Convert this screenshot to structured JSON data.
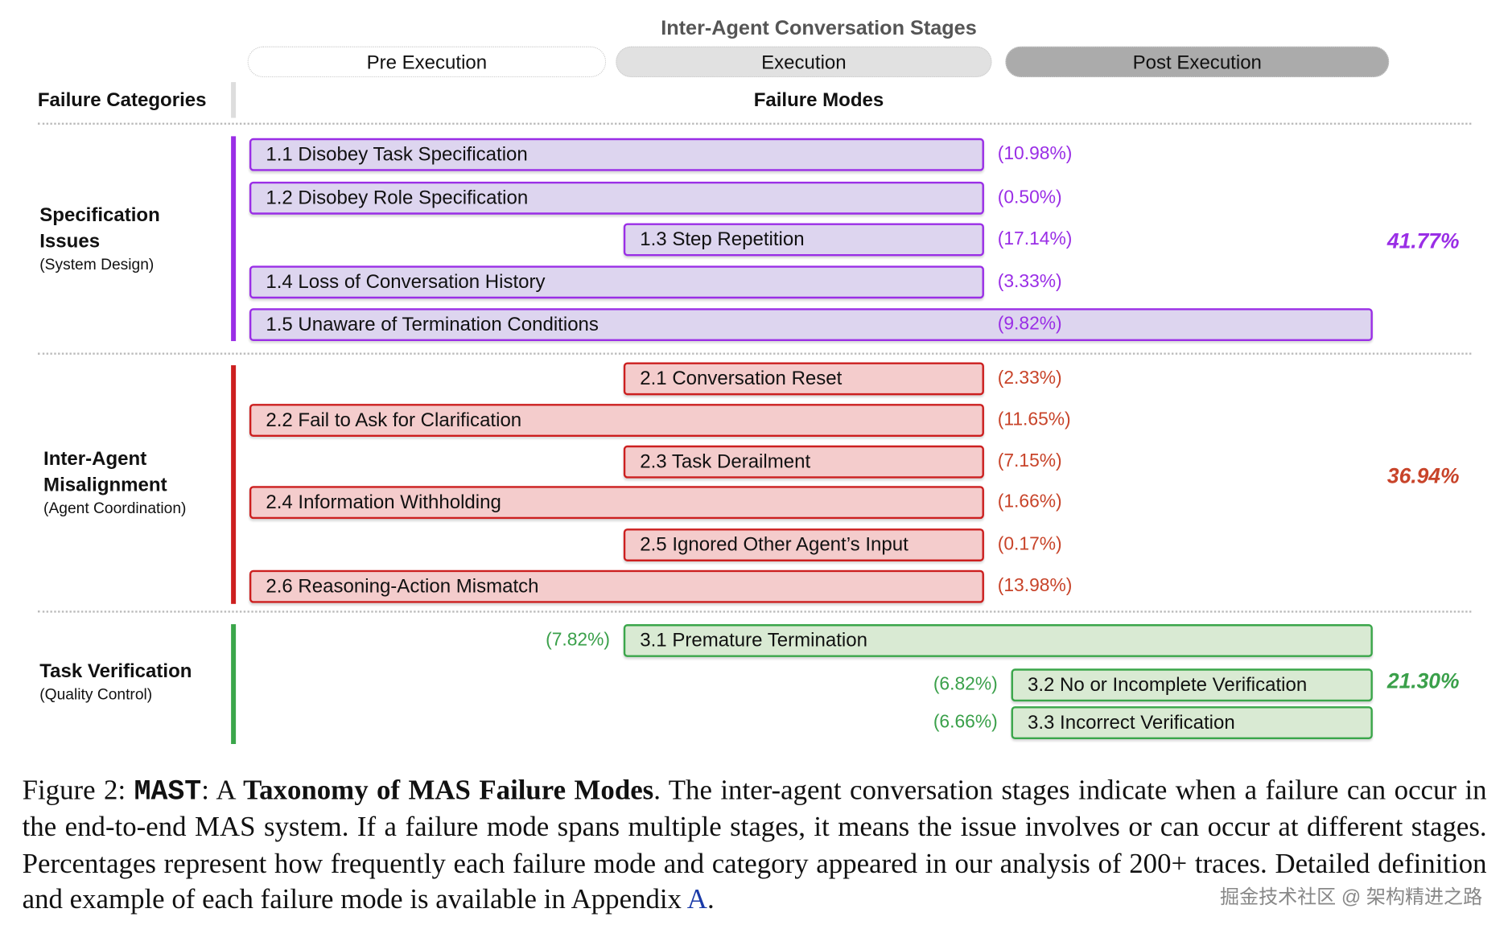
{
  "stages_title": "Inter-Agent Conversation Stages",
  "stages": [
    {
      "key": "pre",
      "label": "Pre Execution",
      "color": "#f3f3f3"
    },
    {
      "key": "exec",
      "label": "Execution",
      "color": "#e1e1e1"
    },
    {
      "key": "post",
      "label": "Post Execution",
      "color": "#ababab"
    }
  ],
  "headers": {
    "categories": "Failure Categories",
    "modes": "Failure Modes"
  },
  "categories": [
    {
      "name_line1": "Specification",
      "name_line2": "Issues",
      "subtitle": "(System Design)",
      "total": "41.77%",
      "color": "#9a2ee6",
      "fill": "#ddd5ef",
      "pct_color": "#9a2ee6",
      "modes": [
        {
          "label": "1.1 Disobey Task Specification",
          "pct": "(10.98%)",
          "stages": [
            "pre",
            "exec"
          ]
        },
        {
          "label": "1.2 Disobey Role Specification",
          "pct": "(0.50%)",
          "stages": [
            "pre",
            "exec"
          ]
        },
        {
          "label": "1.3 Step Repetition",
          "pct": "(17.14%)",
          "stages": [
            "exec"
          ]
        },
        {
          "label": "1.4 Loss of Conversation History",
          "pct": "(3.33%)",
          "stages": [
            "pre",
            "exec"
          ]
        },
        {
          "label": "1.5 Unaware of Termination Conditions",
          "pct": "(9.82%)",
          "stages": [
            "pre",
            "exec",
            "post"
          ]
        }
      ]
    },
    {
      "name_line1": "Inter-Agent",
      "name_line2": "Misalignment",
      "subtitle": "(Agent Coordination)",
      "total": "36.94%",
      "color": "#cc1f1f",
      "fill": "#f4cccc",
      "pct_color": "#c8442a",
      "modes": [
        {
          "label": "2.1 Conversation Reset",
          "pct": "(2.33%)",
          "stages": [
            "exec"
          ]
        },
        {
          "label": "2.2 Fail to Ask for Clarification",
          "pct": "(11.65%)",
          "stages": [
            "pre",
            "exec"
          ]
        },
        {
          "label": "2.3 Task Derailment",
          "pct": "(7.15%)",
          "stages": [
            "exec"
          ]
        },
        {
          "label": "2.4 Information Withholding",
          "pct": "(1.66%)",
          "stages": [
            "pre",
            "exec"
          ]
        },
        {
          "label": "2.5 Ignored Other Agent’s Input",
          "pct": "(0.17%)",
          "stages": [
            "exec"
          ]
        },
        {
          "label": "2.6 Reasoning-Action Mismatch",
          "pct": "(13.98%)",
          "stages": [
            "pre",
            "exec"
          ]
        }
      ]
    },
    {
      "name_line1": "Task Verification",
      "name_line2": "",
      "subtitle": "(Quality Control)",
      "total": "21.30%",
      "color": "#3aa64a",
      "fill": "#d9ead3",
      "pct_color": "#3aa04a",
      "modes": [
        {
          "label": "3.1  Premature Termination",
          "pct": "(7.82%)",
          "stages": [
            "exec",
            "post"
          ]
        },
        {
          "label": "3.2 No or Incomplete Verification",
          "pct": "(6.82%)",
          "stages": [
            "post"
          ]
        },
        {
          "label": "3.3 Incorrect Verification",
          "pct": "(6.66%)",
          "stages": [
            "post"
          ]
        }
      ]
    }
  ],
  "caption": {
    "prefix": "Figure 2: ",
    "mast": "MAST",
    "colon": ": A ",
    "bold_title": "Taxonomy of MAS Failure Modes",
    "body": ". The inter-agent conversation stages indicate when a failure can occur in the end-to-end MAS system. If a failure mode spans multiple stages, it means the issue involves or can occur at different stages. Percentages represent how frequently each failure mode and category appeared in our analysis of 200+ traces. Detailed definition and example of each failure mode is available in Appendix ",
    "link": "A",
    "end": "."
  },
  "watermark": "掘金技术社区 @ 架构精进之路"
}
